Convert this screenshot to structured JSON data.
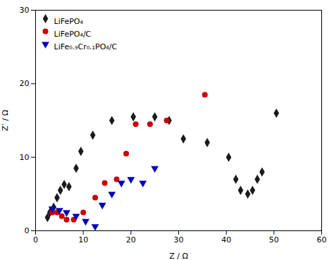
{
  "chart_data": {
    "type": "scatter",
    "xlabel": "Z / Ω",
    "ylabel": "Z’ / Ω",
    "xlim": [
      0,
      60
    ],
    "ylim": [
      0,
      30
    ],
    "xticks": [
      0,
      10,
      20,
      30,
      40,
      50,
      60
    ],
    "yticks": [
      0,
      10,
      20,
      30
    ],
    "grid": false,
    "legend": "upper left",
    "series": [
      {
        "name": "LiFePO₄",
        "color": "#1a1a1a",
        "marker": "diamond",
        "x": [
          2.5,
          3.0,
          3.8,
          4.5,
          5.2,
          6.0,
          7.0,
          8.5,
          9.5,
          12.0,
          16.0,
          20.5,
          25.0,
          28.0,
          31.0,
          36.0,
          40.5,
          42.0,
          43.0,
          44.5,
          45.5,
          46.5,
          47.5,
          50.5
        ],
        "values": [
          1.8,
          2.5,
          3.2,
          4.5,
          5.5,
          6.3,
          6.0,
          8.5,
          10.8,
          13.0,
          15.0,
          15.5,
          15.5,
          15.0,
          12.5,
          12.0,
          10.0,
          7.0,
          5.5,
          5.0,
          5.5,
          7.0,
          8.0,
          16.0
        ]
      },
      {
        "name": "LiFePO₄/C",
        "color": "#cc0000",
        "marker": "circle",
        "x": [
          3.5,
          4.5,
          5.5,
          6.5,
          8.0,
          10.0,
          12.5,
          14.5,
          17.0,
          19.0,
          21.0,
          24.0,
          27.5,
          35.5
        ],
        "values": [
          2.5,
          2.5,
          2.0,
          1.5,
          1.5,
          2.5,
          4.5,
          6.5,
          7.0,
          10.5,
          14.5,
          14.5,
          15.0,
          18.5
        ]
      },
      {
        "name": "LiFe₀.₉Cr₀.₁PO₄/C",
        "color": "#0000bb",
        "marker": "triangle_down",
        "x": [
          3.5,
          5.0,
          6.5,
          8.5,
          10.5,
          12.5,
          14.0,
          16.0,
          18.0,
          20.0,
          22.5,
          25.0
        ],
        "values": [
          3.0,
          2.8,
          2.5,
          2.0,
          1.3,
          0.6,
          3.5,
          5.0,
          6.5,
          7.0,
          6.5,
          8.5
        ]
      }
    ]
  }
}
